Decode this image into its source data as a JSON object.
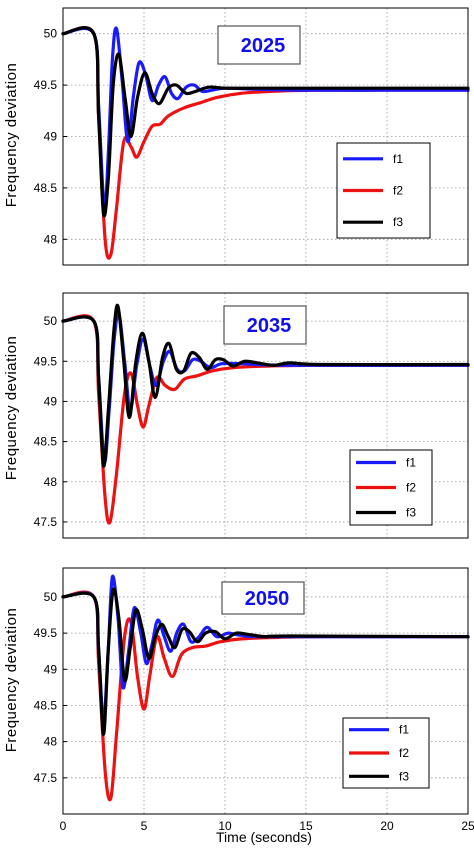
{
  "chart_data": [
    {
      "type": "line",
      "annotation": "2025",
      "ylabel": "Frequency deviation",
      "xlabel": "",
      "xlim": [
        0,
        25
      ],
      "ylim": [
        47.75,
        50.25
      ],
      "yticks": [
        "50",
        "49.5",
        "49",
        "48.5",
        "48"
      ],
      "xticks": [],
      "grid": true,
      "legend_position": "bottom-right",
      "series": [
        {
          "name": "f1",
          "color": "#1a1aff",
          "points": [
            [
              0,
              50
            ],
            [
              1.9,
              50
            ],
            [
              2.2,
              49.3
            ],
            [
              2.55,
              48.3
            ],
            [
              2.8,
              48.85
            ],
            [
              3.05,
              49.75
            ],
            [
              3.3,
              50.05
            ],
            [
              3.65,
              49.55
            ],
            [
              4,
              48.95
            ],
            [
              4.35,
              49.4
            ],
            [
              4.7,
              49.72
            ],
            [
              5.1,
              49.6
            ],
            [
              5.5,
              49.35
            ],
            [
              5.9,
              49.5
            ],
            [
              6.3,
              49.58
            ],
            [
              6.7,
              49.42
            ],
            [
              7.1,
              49.37
            ],
            [
              7.6,
              49.48
            ],
            [
              8.1,
              49.5
            ],
            [
              8.6,
              49.44
            ],
            [
              9.2,
              49.45
            ],
            [
              10,
              49.47
            ],
            [
              12,
              49.46
            ],
            [
              15,
              49.45
            ],
            [
              20,
              49.45
            ],
            [
              25,
              49.45
            ]
          ]
        },
        {
          "name": "f2",
          "color": "#ee1111",
          "points": [
            [
              0,
              50
            ],
            [
              1.9,
              50
            ],
            [
              2.2,
              49.2
            ],
            [
              2.6,
              48.0
            ],
            [
              2.95,
              47.85
            ],
            [
              3.3,
              48.3
            ],
            [
              3.75,
              48.95
            ],
            [
              4.2,
              48.9
            ],
            [
              4.55,
              48.8
            ],
            [
              5,
              48.95
            ],
            [
              5.5,
              49.1
            ],
            [
              6,
              49.12
            ],
            [
              6.5,
              49.2
            ],
            [
              7.5,
              49.28
            ],
            [
              8.5,
              49.33
            ],
            [
              9.5,
              49.38
            ],
            [
              11,
              49.42
            ],
            [
              13,
              49.44
            ],
            [
              16,
              49.45
            ],
            [
              25,
              49.45
            ]
          ]
        },
        {
          "name": "f3",
          "color": "#000000",
          "points": [
            [
              0,
              50
            ],
            [
              1.9,
              50
            ],
            [
              2.2,
              49.2
            ],
            [
              2.5,
              48.25
            ],
            [
              2.8,
              48.6
            ],
            [
              3.1,
              49.5
            ],
            [
              3.45,
              49.8
            ],
            [
              3.85,
              49.35
            ],
            [
              4.2,
              49.0
            ],
            [
              4.6,
              49.38
            ],
            [
              5.05,
              49.62
            ],
            [
              5.5,
              49.42
            ],
            [
              5.95,
              49.32
            ],
            [
              6.5,
              49.47
            ],
            [
              7.0,
              49.5
            ],
            [
              7.6,
              49.42
            ],
            [
              8.2,
              49.44
            ],
            [
              9,
              49.48
            ],
            [
              10,
              49.47
            ],
            [
              12,
              49.47
            ],
            [
              16,
              49.47
            ],
            [
              25,
              49.47
            ]
          ]
        }
      ]
    },
    {
      "type": "line",
      "annotation": "2035",
      "ylabel": "Frequency deviation",
      "xlabel": "",
      "xlim": [
        0,
        25
      ],
      "ylim": [
        47.3,
        50.35
      ],
      "yticks": [
        "50",
        "49.5",
        "49",
        "48.5",
        "48",
        "47.5"
      ],
      "xticks": [],
      "grid": true,
      "legend_position": "bottom-right",
      "series": [
        {
          "name": "f1",
          "color": "#1a1aff",
          "points": [
            [
              0,
              50
            ],
            [
              1.9,
              50
            ],
            [
              2.2,
              49.3
            ],
            [
              2.55,
              48.25
            ],
            [
              2.85,
              48.9
            ],
            [
              3.15,
              49.75
            ],
            [
              3.45,
              50.1
            ],
            [
              3.8,
              49.5
            ],
            [
              4.15,
              48.9
            ],
            [
              4.55,
              49.45
            ],
            [
              4.95,
              49.78
            ],
            [
              5.35,
              49.45
            ],
            [
              5.75,
              49.2
            ],
            [
              6.2,
              49.5
            ],
            [
              6.6,
              49.62
            ],
            [
              7.05,
              49.4
            ],
            [
              7.5,
              49.38
            ],
            [
              8,
              49.52
            ],
            [
              8.5,
              49.5
            ],
            [
              9.1,
              49.42
            ],
            [
              9.8,
              49.47
            ],
            [
              11,
              49.47
            ],
            [
              14,
              49.45
            ],
            [
              25,
              49.45
            ]
          ]
        },
        {
          "name": "f2",
          "color": "#ee1111",
          "points": [
            [
              0,
              50
            ],
            [
              1.9,
              50
            ],
            [
              2.2,
              49.1
            ],
            [
              2.6,
              47.8
            ],
            [
              2.9,
              47.5
            ],
            [
              3.3,
              48.1
            ],
            [
              3.8,
              49.1
            ],
            [
              4.2,
              49.35
            ],
            [
              4.6,
              48.95
            ],
            [
              4.95,
              48.68
            ],
            [
              5.3,
              48.95
            ],
            [
              5.8,
              49.3
            ],
            [
              6.3,
              49.2
            ],
            [
              6.9,
              49.15
            ],
            [
              7.5,
              49.28
            ],
            [
              8.3,
              49.32
            ],
            [
              9.2,
              49.38
            ],
            [
              10.5,
              49.42
            ],
            [
              12.5,
              49.44
            ],
            [
              16,
              49.45
            ],
            [
              25,
              49.45
            ]
          ]
        },
        {
          "name": "f3",
          "color": "#000000",
          "points": [
            [
              0,
              50
            ],
            [
              1.9,
              50
            ],
            [
              2.2,
              49.3
            ],
            [
              2.5,
              48.2
            ],
            [
              2.8,
              48.9
            ],
            [
              3.15,
              49.9
            ],
            [
              3.4,
              50.18
            ],
            [
              3.75,
              49.5
            ],
            [
              4.1,
              48.8
            ],
            [
              4.5,
              49.5
            ],
            [
              4.9,
              49.85
            ],
            [
              5.3,
              49.5
            ],
            [
              5.7,
              49.05
            ],
            [
              6.15,
              49.55
            ],
            [
              6.55,
              49.72
            ],
            [
              7.0,
              49.4
            ],
            [
              7.45,
              49.38
            ],
            [
              7.9,
              49.6
            ],
            [
              8.4,
              49.55
            ],
            [
              8.9,
              49.4
            ],
            [
              9.4,
              49.52
            ],
            [
              9.9,
              49.52
            ],
            [
              10.5,
              49.44
            ],
            [
              11.2,
              49.5
            ],
            [
              12,
              49.48
            ],
            [
              13,
              49.45
            ],
            [
              14,
              49.48
            ],
            [
              16,
              49.46
            ],
            [
              25,
              49.46
            ]
          ]
        }
      ]
    },
    {
      "type": "line",
      "annotation": "2050",
      "ylabel": "Frequency deviation",
      "xlabel": "Time (seconds)",
      "xlim": [
        0,
        25
      ],
      "ylim": [
        47.0,
        50.4
      ],
      "yticks": [
        "50",
        "49.5",
        "49",
        "48.5",
        "48",
        "47.5"
      ],
      "xticks": [
        "0",
        "5",
        "10",
        "15",
        "20",
        "25"
      ],
      "grid": true,
      "legend_position": "bottom-right",
      "series": [
        {
          "name": "f1",
          "color": "#1a1aff",
          "points": [
            [
              0,
              50
            ],
            [
              1.9,
              50
            ],
            [
              2.2,
              49.25
            ],
            [
              2.5,
              48.3
            ],
            [
              2.8,
              49.3
            ],
            [
              3.05,
              50.28
            ],
            [
              3.4,
              49.7
            ],
            [
              3.7,
              48.75
            ],
            [
              4.05,
              49.25
            ],
            [
              4.4,
              49.85
            ],
            [
              4.8,
              49.5
            ],
            [
              5.15,
              49.08
            ],
            [
              5.5,
              49.35
            ],
            [
              5.85,
              49.68
            ],
            [
              6.25,
              49.45
            ],
            [
              6.65,
              49.25
            ],
            [
              7.05,
              49.52
            ],
            [
              7.45,
              49.62
            ],
            [
              7.9,
              49.38
            ],
            [
              8.4,
              49.45
            ],
            [
              8.9,
              49.58
            ],
            [
              9.5,
              49.45
            ],
            [
              10.2,
              49.5
            ],
            [
              11,
              49.47
            ],
            [
              13,
              49.45
            ],
            [
              25,
              49.45
            ]
          ]
        },
        {
          "name": "f2",
          "color": "#ee1111",
          "points": [
            [
              0,
              50
            ],
            [
              1.9,
              50
            ],
            [
              2.2,
              49.1
            ],
            [
              2.6,
              47.6
            ],
            [
              2.95,
              47.22
            ],
            [
              3.3,
              48.1
            ],
            [
              3.8,
              49.45
            ],
            [
              4.2,
              49.65
            ],
            [
              4.6,
              48.9
            ],
            [
              5.0,
              48.45
            ],
            [
              5.35,
              48.9
            ],
            [
              5.8,
              49.45
            ],
            [
              6.25,
              49.15
            ],
            [
              6.75,
              48.9
            ],
            [
              7.3,
              49.2
            ],
            [
              8,
              49.3
            ],
            [
              8.8,
              49.32
            ],
            [
              9.7,
              49.38
            ],
            [
              11,
              49.42
            ],
            [
              13,
              49.44
            ],
            [
              16,
              49.45
            ],
            [
              25,
              49.45
            ]
          ]
        },
        {
          "name": "f3",
          "color": "#000000",
          "points": [
            [
              0,
              50
            ],
            [
              1.9,
              50
            ],
            [
              2.2,
              49.3
            ],
            [
              2.5,
              48.1
            ],
            [
              2.8,
              49.3
            ],
            [
              3.1,
              50.1
            ],
            [
              3.45,
              49.7
            ],
            [
              3.8,
              48.85
            ],
            [
              4.15,
              49.3
            ],
            [
              4.5,
              49.82
            ],
            [
              4.9,
              49.55
            ],
            [
              5.3,
              49.15
            ],
            [
              5.7,
              49.45
            ],
            [
              6.1,
              49.62
            ],
            [
              6.5,
              49.45
            ],
            [
              6.9,
              49.3
            ],
            [
              7.35,
              49.55
            ],
            [
              7.8,
              49.52
            ],
            [
              8.3,
              49.38
            ],
            [
              8.8,
              49.5
            ],
            [
              9.4,
              49.52
            ],
            [
              10,
              49.42
            ],
            [
              10.7,
              49.5
            ],
            [
              11.5,
              49.48
            ],
            [
              12.5,
              49.45
            ],
            [
              14,
              49.46
            ],
            [
              25,
              49.45
            ]
          ]
        }
      ]
    }
  ]
}
